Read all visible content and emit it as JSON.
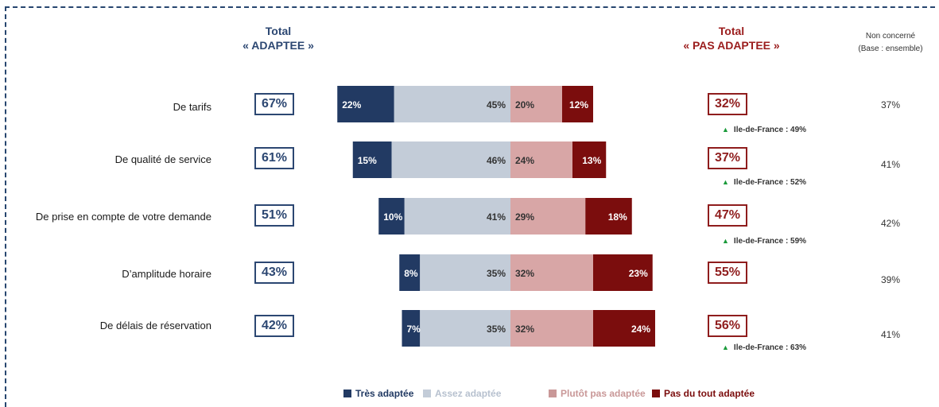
{
  "header": {
    "left_line1": "Total",
    "left_line2": "« ADAPTEE »",
    "right_line1": "Total",
    "right_line2": "« PAS ADAPTEE »",
    "nc_line1": "Non concerné",
    "nc_line2": "(Base : ensemble)"
  },
  "colors": {
    "tres": "#223a63",
    "assez": "#c3ccd8",
    "plutot_pas": "#d8a6a6",
    "pas_du_tout": "#7b0d0d",
    "adaptee_text": "#2c4772",
    "pas_adaptee_text": "#8f1d1d",
    "idf_triangle": "#1a9a3a"
  },
  "rows": [
    {
      "label": "De tarifs",
      "total_adaptee": "67%",
      "total_pas_adaptee": "32%",
      "non_concerne": "37%",
      "idf": "Ile-de-France : 49%"
    },
    {
      "label": "De qualité de service",
      "total_adaptee": "61%",
      "total_pas_adaptee": "37%",
      "non_concerne": "41%",
      "idf": "Ile-de-France : 52%"
    },
    {
      "label": "De prise en compte de votre demande",
      "total_adaptee": "51%",
      "total_pas_adaptee": "47%",
      "non_concerne": "42%",
      "idf": "Ile-de-France : 59%"
    },
    {
      "label": "D’amplitude horaire",
      "total_adaptee": "43%",
      "total_pas_adaptee": "55%",
      "non_concerne": "39%",
      "idf": ""
    },
    {
      "label": "De délais de réservation",
      "total_adaptee": "42%",
      "total_pas_adaptee": "56%",
      "non_concerne": "41%",
      "idf": "Ile-de-France : 63%"
    }
  ],
  "chart_data": {
    "type": "bar",
    "orientation": "horizontal",
    "stacked": "diverging",
    "categories": [
      "De tarifs",
      "De qualité de service",
      "De prise en compte de votre demande",
      "D’amplitude horaire",
      "De délais de réservation"
    ],
    "series": [
      {
        "name": "Très adaptée",
        "values": [
          22,
          15,
          10,
          8,
          7
        ],
        "labels": [
          "22%",
          "15%",
          "10%",
          "8%",
          "7%"
        ],
        "side": "left"
      },
      {
        "name": "Assez adaptée",
        "values": [
          45,
          46,
          41,
          35,
          35
        ],
        "labels": [
          "45%",
          "46%",
          "41%",
          "35%",
          "35%"
        ],
        "side": "left"
      },
      {
        "name": "Plutôt pas adaptée",
        "values": [
          20,
          24,
          29,
          32,
          32
        ],
        "labels": [
          "20%",
          "24%",
          "29%",
          "32%",
          "32%"
        ],
        "side": "right"
      },
      {
        "name": "Pas du tout adaptée",
        "values": [
          12,
          13,
          18,
          23,
          24
        ],
        "labels": [
          "12%",
          "13%",
          "18%",
          "23%",
          "24%"
        ],
        "side": "right"
      }
    ],
    "legend": "bottom"
  }
}
